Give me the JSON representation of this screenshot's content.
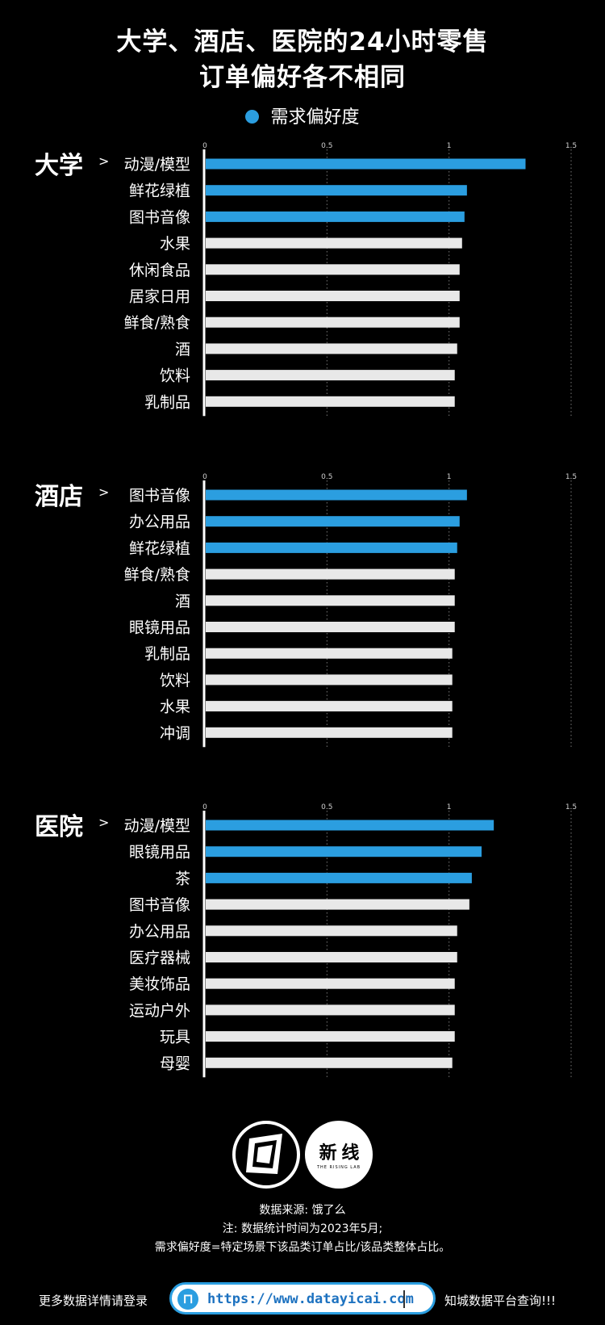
{
  "title_line1": "大学、酒店、医院的24小时零售",
  "title_line2": "订单偏好各不相同",
  "legend_label": "需求偏好度",
  "colors": {
    "highlight": "#2b9ee0",
    "normal": "#e8e8e8",
    "background": "#000000"
  },
  "chart_data": [
    {
      "type": "bar",
      "orientation": "horizontal",
      "group": "大学",
      "xlim": [
        0,
        1.5
      ],
      "x_ticks": [
        "0",
        "0.5",
        "1",
        "1.5"
      ],
      "categories": [
        "动漫/模型",
        "鲜花绿植",
        "图书音像",
        "水果",
        "休闲食品",
        "居家日用",
        "鲜食/熟食",
        "酒",
        "饮料",
        "乳制品"
      ],
      "values": [
        1.31,
        1.07,
        1.06,
        1.05,
        1.04,
        1.04,
        1.04,
        1.03,
        1.02,
        1.02
      ],
      "highlighted": [
        true,
        true,
        true,
        false,
        false,
        false,
        false,
        false,
        false,
        false
      ],
      "series": [
        {
          "name": "需求偏好度"
        }
      ]
    },
    {
      "type": "bar",
      "orientation": "horizontal",
      "group": "酒店",
      "xlim": [
        0,
        1.5
      ],
      "x_ticks": [
        "0",
        "0.5",
        "1",
        "1.5"
      ],
      "categories": [
        "图书音像",
        "办公用品",
        "鲜花绿植",
        "鲜食/熟食",
        "酒",
        "眼镜用品",
        "乳制品",
        "饮料",
        "水果",
        "冲调"
      ],
      "values": [
        1.07,
        1.04,
        1.03,
        1.02,
        1.02,
        1.02,
        1.01,
        1.01,
        1.01,
        1.01
      ],
      "highlighted": [
        true,
        true,
        true,
        false,
        false,
        false,
        false,
        false,
        false,
        false
      ],
      "series": [
        {
          "name": "需求偏好度"
        }
      ]
    },
    {
      "type": "bar",
      "orientation": "horizontal",
      "group": "医院",
      "xlim": [
        0,
        1.5
      ],
      "x_ticks": [
        "0",
        "0.5",
        "1",
        "1.5"
      ],
      "categories": [
        "动漫/模型",
        "眼镜用品",
        "茶",
        "图书音像",
        "办公用品",
        "医疗器械",
        "美妆饰品",
        "运动户外",
        "玩具",
        "母婴"
      ],
      "values": [
        1.18,
        1.13,
        1.09,
        1.08,
        1.03,
        1.03,
        1.02,
        1.02,
        1.02,
        1.01
      ],
      "highlighted": [
        true,
        true,
        true,
        false,
        false,
        false,
        false,
        false,
        false,
        false
      ],
      "series": [
        {
          "name": "需求偏好度"
        }
      ]
    }
  ],
  "logo_b_text": "新 线",
  "logo_b_sub": "THE RISING LAB",
  "notes": [
    "数据来源: 饿了么",
    "注: 数据统计时间为2023年5月;",
    "需求偏好度=特定场景下该品类订单占比/该品类整体占比。"
  ],
  "footer": {
    "prefix": "更多数据详情请登录",
    "url": "https://www.datayicai.com",
    "suffix": "知城数据平台查询!!!"
  }
}
